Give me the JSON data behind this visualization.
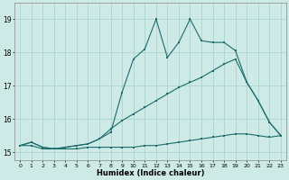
{
  "x": [
    0,
    1,
    2,
    3,
    4,
    5,
    6,
    7,
    8,
    9,
    10,
    11,
    12,
    13,
    14,
    15,
    16,
    17,
    18,
    19,
    20,
    21,
    22,
    23
  ],
  "line_jagged": [
    15.2,
    15.3,
    15.15,
    15.1,
    15.15,
    15.2,
    15.25,
    15.4,
    15.6,
    16.8,
    17.8,
    18.1,
    19.0,
    17.85,
    18.3,
    19.0,
    18.35,
    18.3,
    18.3,
    18.05,
    17.1,
    16.55,
    15.9,
    15.5
  ],
  "line_upper": [
    15.2,
    15.3,
    15.15,
    15.1,
    15.15,
    15.2,
    15.25,
    15.4,
    15.7,
    15.95,
    16.15,
    16.35,
    16.55,
    16.75,
    16.95,
    17.1,
    17.25,
    17.45,
    17.65,
    17.8,
    17.1,
    16.55,
    15.9,
    15.5
  ],
  "line_flat": [
    15.2,
    15.2,
    15.1,
    15.1,
    15.1,
    15.1,
    15.15,
    15.15,
    15.15,
    15.15,
    15.15,
    15.2,
    15.2,
    15.25,
    15.3,
    15.35,
    15.4,
    15.45,
    15.5,
    15.55,
    15.55,
    15.5,
    15.45,
    15.5
  ],
  "bg_color": "#ceeae7",
  "grid_color": "#aad4d0",
  "line_color": "#1b6b6b",
  "xlabel": "Humidex (Indice chaleur)",
  "ylim": [
    14.75,
    19.5
  ],
  "xlim": [
    -0.5,
    23.5
  ],
  "yticks": [
    15,
    16,
    17,
    18,
    19
  ],
  "xticks": [
    0,
    1,
    2,
    3,
    4,
    5,
    6,
    7,
    8,
    9,
    10,
    11,
    12,
    13,
    14,
    15,
    16,
    17,
    18,
    19,
    20,
    21,
    22,
    23
  ],
  "figw": 3.2,
  "figh": 2.0,
  "dpi": 100
}
